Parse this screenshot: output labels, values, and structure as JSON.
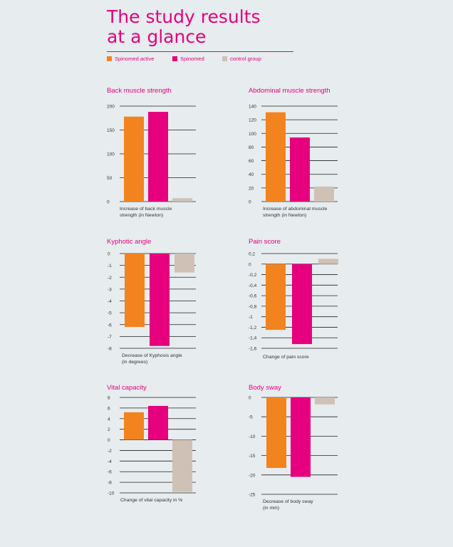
{
  "page": {
    "title": "The study results\nat a glance"
  },
  "legend": [
    {
      "label": "Spinomed active",
      "color": "#f3831f"
    },
    {
      "label": "Spinomed",
      "color": "#e6007e"
    },
    {
      "label": "control group",
      "color": "#cfc1b5"
    }
  ],
  "colors": {
    "accent": "#e6007e",
    "grid": "#222222",
    "tick_text": "#333333",
    "background": "#e7ecee"
  },
  "chart_data": [
    {
      "type": "bar",
      "title": "Back muscle strength",
      "xlabel": "Increase of back muscle\nstrength (in Newton)",
      "ylim": [
        0,
        200
      ],
      "yticks": [
        0,
        50,
        100,
        150,
        200
      ],
      "yticklabels": [
        "0",
        "50",
        "100",
        "150",
        "200"
      ],
      "series": [
        {
          "name": "Spinomed active",
          "values": [
            178
          ]
        },
        {
          "name": "Spinomed",
          "values": [
            188
          ]
        },
        {
          "name": "control group",
          "values": [
            7
          ]
        }
      ]
    },
    {
      "type": "bar",
      "title": "Abdominal muscle strength",
      "xlabel": "Increase of abdominal muscle\nstrength (in Newton)",
      "ylim": [
        0,
        140
      ],
      "yticks": [
        0,
        20,
        40,
        60,
        80,
        100,
        120,
        140
      ],
      "yticklabels": [
        "0",
        "20",
        "40",
        "60",
        "80",
        "100",
        "120",
        "140"
      ],
      "series": [
        {
          "name": "Spinomed active",
          "values": [
            131
          ]
        },
        {
          "name": "Spinomed",
          "values": [
            94
          ]
        },
        {
          "name": "control group",
          "values": [
            22
          ]
        }
      ]
    },
    {
      "type": "bar",
      "title": "Kyphotic angle",
      "xlabel": "Decrease of Kyphosis angle\n(in degrees)",
      "ylim": [
        -8,
        0
      ],
      "yticks": [
        0,
        -1,
        -2,
        -3,
        -4,
        -5,
        -6,
        -7,
        -8
      ],
      "yticklabels": [
        "0",
        "-1",
        "-2",
        "-3",
        "-4",
        "-5",
        "-6",
        "-7",
        "-8"
      ],
      "series": [
        {
          "name": "Spinomed active",
          "values": [
            -6.2
          ]
        },
        {
          "name": "Spinomed",
          "values": [
            -7.8
          ]
        },
        {
          "name": "control group",
          "values": [
            -1.6
          ]
        }
      ]
    },
    {
      "type": "bar",
      "title": "Pain score",
      "xlabel": "Change of pain score",
      "ylim": [
        -1.6,
        0.2
      ],
      "yticks": [
        0.2,
        0,
        -0.2,
        -0.4,
        -0.6,
        -0.8,
        -1,
        -1.2,
        -1.4,
        -1.6
      ],
      "yticklabels": [
        "0,2",
        "0",
        "-0,2",
        "-0,4",
        "-0,6",
        "-0,8",
        "-1",
        "-1,2",
        "-1,4",
        "-1,6"
      ],
      "series": [
        {
          "name": "Spinomed active",
          "values": [
            -1.25
          ]
        },
        {
          "name": "Spinomed",
          "values": [
            -1.52
          ]
        },
        {
          "name": "control group",
          "values": [
            0.1
          ]
        }
      ]
    },
    {
      "type": "bar",
      "title": "Vital capacity",
      "xlabel": "Change of vital capacity in %",
      "ylim": [
        -10,
        8
      ],
      "yticks": [
        8,
        6,
        4,
        2,
        0,
        -2,
        -4,
        -6,
        -8,
        -10
      ],
      "yticklabels": [
        "8",
        "6",
        "4",
        "2",
        "0",
        "-2",
        "-4",
        "-6",
        "-8",
        "-10"
      ],
      "series": [
        {
          "name": "Spinomed active",
          "values": [
            5.2
          ]
        },
        {
          "name": "Spinomed",
          "values": [
            6.4
          ]
        },
        {
          "name": "control group",
          "values": [
            -9.8
          ]
        }
      ]
    },
    {
      "type": "bar",
      "title": "Body sway",
      "xlabel": "Decrease of body sway\n(in mm)",
      "ylim": [
        -25,
        0
      ],
      "yticks": [
        0,
        -5,
        -10,
        -15,
        -20,
        -25
      ],
      "yticklabels": [
        "0",
        "-5",
        "-10",
        "-15",
        "-20",
        "-25"
      ],
      "series": [
        {
          "name": "Spinomed active",
          "values": [
            -18.2
          ]
        },
        {
          "name": "Spinomed",
          "values": [
            -20.5
          ]
        },
        {
          "name": "control group",
          "values": [
            -1.8
          ]
        }
      ]
    }
  ]
}
